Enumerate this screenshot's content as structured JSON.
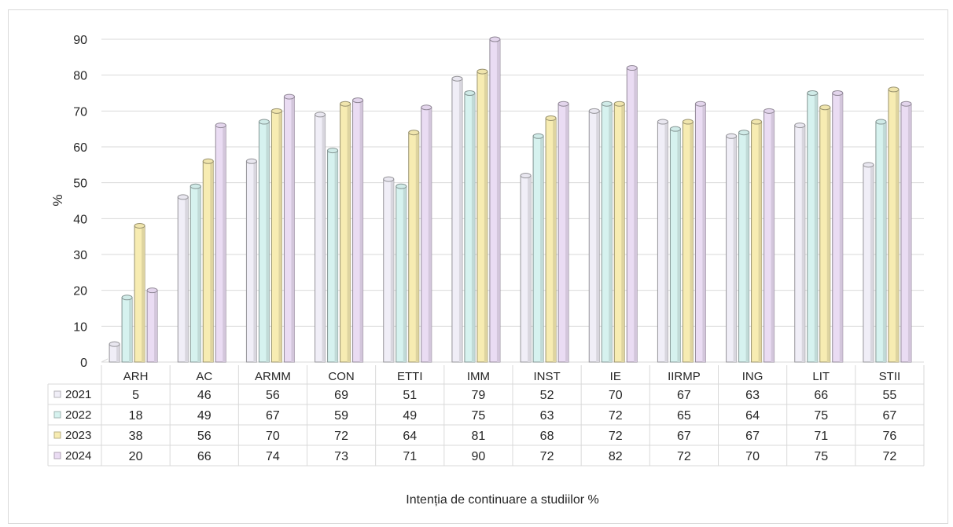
{
  "chart_data": {
    "type": "bar",
    "title": "",
    "ylabel": "%",
    "xlabel": "Intenția de continuare a studiilor  %",
    "ylim": [
      0,
      90
    ],
    "yticks": [
      0,
      10,
      20,
      30,
      40,
      50,
      60,
      70,
      80,
      90
    ],
    "grid": true,
    "legend_placement": "data-table",
    "categories": [
      "ARH",
      "AC",
      "ARMM",
      "CON",
      "ETTI",
      "IMM",
      "INST",
      "IE",
      "IIRMP",
      "ING",
      "LIT",
      "STII"
    ],
    "series": [
      {
        "name": "2021",
        "color": "#f0eef7",
        "values": [
          5,
          46,
          56,
          69,
          51,
          79,
          52,
          70,
          67,
          63,
          66,
          55
        ]
      },
      {
        "name": "2022",
        "color": "#d6f2ef",
        "values": [
          18,
          49,
          67,
          59,
          49,
          75,
          63,
          72,
          65,
          64,
          75,
          67
        ]
      },
      {
        "name": "2023",
        "color": "#f7ecb2",
        "values": [
          38,
          56,
          70,
          72,
          64,
          81,
          68,
          72,
          67,
          67,
          71,
          76
        ]
      },
      {
        "name": "2024",
        "color": "#eadcf3",
        "values": [
          20,
          66,
          74,
          73,
          71,
          90,
          72,
          82,
          72,
          70,
          75,
          72
        ]
      }
    ]
  }
}
